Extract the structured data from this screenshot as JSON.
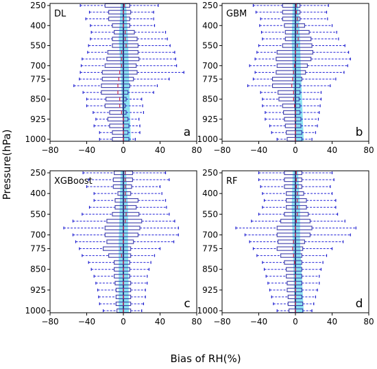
{
  "figure": {
    "ylabel": "Pressure(hPa)",
    "xlabel": "Bias of RH(%)",
    "colors": {
      "box": "#3a3aa8",
      "whisker": "#2020d8",
      "cap": "#1a1acc",
      "median": "#cc3355",
      "shade": "#63d8ee",
      "zero_line": "#1a1a55",
      "frame": "#000000"
    }
  },
  "chart_data": [
    {
      "type": "box",
      "panel_name": "DL",
      "panel_letter": "a",
      "x_ticks": [
        -80,
        -40,
        0,
        40,
        80
      ],
      "xlim": [
        -80,
        80
      ],
      "y_ticks": [
        250,
        400,
        550,
        700,
        775,
        850,
        925,
        1000
      ],
      "levels": [
        250,
        300,
        350,
        400,
        450,
        500,
        550,
        600,
        650,
        700,
        750,
        775,
        800,
        825,
        850,
        875,
        900,
        925,
        950,
        975,
        1000
      ],
      "shade": [
        {
          "level": 250,
          "x0": -3,
          "x1": 3
        },
        {
          "level": 500,
          "x0": -5,
          "x1": 5
        },
        {
          "level": 750,
          "x0": -3,
          "x1": 6
        },
        {
          "level": 1000,
          "x0": 0,
          "x1": 8
        }
      ],
      "boxes": [
        {
          "level": 250,
          "min": -47,
          "q1": -20,
          "median": 1,
          "q3": 7,
          "max": 38
        },
        {
          "level": 300,
          "min": -37,
          "q1": -16,
          "median": 0,
          "q3": 8,
          "max": 33
        },
        {
          "level": 350,
          "min": -41,
          "q1": -16,
          "median": 0,
          "q3": 7,
          "max": 33
        },
        {
          "level": 400,
          "min": -36,
          "q1": -12,
          "median": 0,
          "q3": 7,
          "max": 34
        },
        {
          "level": 450,
          "min": -35,
          "q1": -10,
          "median": 2,
          "q3": 12,
          "max": 46
        },
        {
          "level": 500,
          "min": -36,
          "q1": -12,
          "median": 2,
          "q3": 15,
          "max": 48
        },
        {
          "level": 550,
          "min": -38,
          "q1": -12,
          "median": 3,
          "q3": 16,
          "max": 51
        },
        {
          "level": 600,
          "min": -39,
          "q1": -17,
          "median": -2,
          "q3": 16,
          "max": 56
        },
        {
          "level": 650,
          "min": -45,
          "q1": -18,
          "median": -2,
          "q3": 17,
          "max": 57
        },
        {
          "level": 700,
          "min": -46,
          "q1": -20,
          "median": -2,
          "q3": 14,
          "max": 58
        },
        {
          "level": 750,
          "min": -47,
          "q1": -23,
          "median": -4,
          "q3": 15,
          "max": 66
        },
        {
          "level": 775,
          "min": -48,
          "q1": -23,
          "median": -5,
          "q3": 11,
          "max": 50
        },
        {
          "level": 800,
          "min": -54,
          "q1": -24,
          "median": -6,
          "q3": 7,
          "max": 37
        },
        {
          "level": 825,
          "min": -44,
          "q1": -24,
          "median": -6,
          "q3": 5,
          "max": 33
        },
        {
          "level": 850,
          "min": -40,
          "q1": -19,
          "median": -4,
          "q3": 3,
          "max": 20
        },
        {
          "level": 875,
          "min": -40,
          "q1": -20,
          "median": -4,
          "q3": 2,
          "max": 21
        },
        {
          "level": 900,
          "min": -33,
          "q1": -15,
          "median": -2,
          "q3": 3,
          "max": 22
        },
        {
          "level": 925,
          "min": -30,
          "q1": -17,
          "median": 0,
          "q3": 5,
          "max": 17
        },
        {
          "level": 950,
          "min": -32,
          "q1": -15,
          "median": 0,
          "q3": 6,
          "max": 18
        },
        {
          "level": 975,
          "min": -26,
          "q1": -12,
          "median": 0,
          "q3": 5,
          "max": 18
        },
        {
          "level": 1000,
          "min": -26,
          "q1": -12,
          "median": 0,
          "q3": 6,
          "max": 13
        }
      ]
    },
    {
      "type": "box",
      "panel_name": "GBM",
      "panel_letter": "b",
      "x_ticks": [
        -80,
        -40,
        0,
        40,
        80
      ],
      "xlim": [
        -80,
        80
      ],
      "y_ticks": [
        250,
        400,
        550,
        700,
        775,
        850,
        925,
        1000
      ],
      "levels": [
        250,
        300,
        350,
        400,
        450,
        500,
        550,
        600,
        650,
        700,
        750,
        775,
        800,
        825,
        850,
        875,
        900,
        925,
        950,
        975,
        1000
      ],
      "shade": [
        {
          "level": 250,
          "x0": -3,
          "x1": 3
        },
        {
          "level": 500,
          "x0": -4,
          "x1": 5
        },
        {
          "level": 750,
          "x0": -3,
          "x1": 6
        },
        {
          "level": 1000,
          "x0": 0,
          "x1": 9
        }
      ],
      "boxes": [
        {
          "level": 250,
          "min": -46,
          "q1": -14,
          "median": 1,
          "q3": 5,
          "max": 36
        },
        {
          "level": 300,
          "min": -43,
          "q1": -14,
          "median": 1,
          "q3": 5,
          "max": 34
        },
        {
          "level": 350,
          "min": -38,
          "q1": -14,
          "median": 2,
          "q3": 5,
          "max": 35
        },
        {
          "level": 400,
          "min": -39,
          "q1": -12,
          "median": 2,
          "q3": 10,
          "max": 40
        },
        {
          "level": 450,
          "min": -37,
          "q1": -11,
          "median": 2,
          "q3": 15,
          "max": 45
        },
        {
          "level": 500,
          "min": -36,
          "q1": -11,
          "median": 3,
          "q3": 17,
          "max": 47
        },
        {
          "level": 550,
          "min": -40,
          "q1": -14,
          "median": 2,
          "q3": 18,
          "max": 54
        },
        {
          "level": 600,
          "min": -42,
          "q1": -20,
          "median": 0,
          "q3": 19,
          "max": 58
        },
        {
          "level": 650,
          "min": -44,
          "q1": -21,
          "median": 0,
          "q3": 17,
          "max": 60
        },
        {
          "level": 700,
          "min": -50,
          "q1": -20,
          "median": -1,
          "q3": 13,
          "max": 57
        },
        {
          "level": 750,
          "min": -44,
          "q1": -21,
          "median": -2,
          "q3": 11,
          "max": 53
        },
        {
          "level": 775,
          "min": -46,
          "q1": -25,
          "median": -3,
          "q3": 7,
          "max": 44
        },
        {
          "level": 800,
          "min": -52,
          "q1": -25,
          "median": -4,
          "q3": 5,
          "max": 38
        },
        {
          "level": 825,
          "min": -38,
          "q1": -19,
          "median": -2,
          "q3": 5,
          "max": 28
        },
        {
          "level": 850,
          "min": -36,
          "q1": -18,
          "median": -2,
          "q3": 4,
          "max": 28
        },
        {
          "level": 875,
          "min": -36,
          "q1": -14,
          "median": -1,
          "q3": 5,
          "max": 27
        },
        {
          "level": 900,
          "min": -33,
          "q1": -13,
          "median": 0,
          "q3": 5,
          "max": 26
        },
        {
          "level": 925,
          "min": -33,
          "q1": -12,
          "median": 0,
          "q3": 6,
          "max": 25
        },
        {
          "level": 950,
          "min": -28,
          "q1": -11,
          "median": 0,
          "q3": 6,
          "max": 24
        },
        {
          "level": 975,
          "min": -26,
          "q1": -10,
          "median": 0,
          "q3": 7,
          "max": 22
        },
        {
          "level": 1000,
          "min": -20,
          "q1": -9,
          "median": 0,
          "q3": 7,
          "max": 18
        }
      ]
    },
    {
      "type": "box",
      "panel_name": "XGBoost",
      "panel_letter": "c",
      "x_ticks": [
        -80,
        -40,
        0,
        40,
        80
      ],
      "xlim": [
        -80,
        80
      ],
      "y_ticks": [
        250,
        400,
        550,
        700,
        775,
        850,
        925,
        1000
      ],
      "levels": [
        250,
        300,
        350,
        400,
        450,
        500,
        550,
        600,
        650,
        700,
        750,
        775,
        800,
        825,
        850,
        875,
        900,
        925,
        950,
        975,
        1000
      ],
      "shade": [
        {
          "level": 250,
          "x0": -3,
          "x1": 3
        },
        {
          "level": 500,
          "x0": -4,
          "x1": 5
        },
        {
          "level": 750,
          "x0": -5,
          "x1": 5
        },
        {
          "level": 1000,
          "x0": -5,
          "x1": 6
        }
      ],
      "boxes": [
        {
          "level": 250,
          "min": -44,
          "q1": -10,
          "median": 2,
          "q3": 10,
          "max": 46
        },
        {
          "level": 300,
          "min": -38,
          "q1": -11,
          "median": 2,
          "q3": 10,
          "max": 50
        },
        {
          "level": 350,
          "min": -40,
          "q1": -11,
          "median": 2,
          "q3": 9,
          "max": 40
        },
        {
          "level": 400,
          "min": -32,
          "q1": -6,
          "median": 2,
          "q3": 8,
          "max": 42
        },
        {
          "level": 450,
          "min": -32,
          "q1": -9,
          "median": 2,
          "q3": 16,
          "max": 46
        },
        {
          "level": 500,
          "min": -37,
          "q1": -9,
          "median": 2,
          "q3": 14,
          "max": 47
        },
        {
          "level": 550,
          "min": -45,
          "q1": -12,
          "median": 3,
          "q3": 17,
          "max": 50
        },
        {
          "level": 600,
          "min": -55,
          "q1": -18,
          "median": 2,
          "q3": 20,
          "max": 56
        },
        {
          "level": 650,
          "min": -65,
          "q1": -20,
          "median": 0,
          "q3": 18,
          "max": 60
        },
        {
          "level": 700,
          "min": -55,
          "q1": -20,
          "median": 0,
          "q3": 16,
          "max": 60
        },
        {
          "level": 750,
          "min": -52,
          "q1": -18,
          "median": 0,
          "q3": 11,
          "max": 55
        },
        {
          "level": 775,
          "min": -48,
          "q1": -22,
          "median": -3,
          "q3": 8,
          "max": 40
        },
        {
          "level": 800,
          "min": -45,
          "q1": -16,
          "median": -2,
          "q3": 8,
          "max": 34
        },
        {
          "level": 825,
          "min": -38,
          "q1": -10,
          "median": 0,
          "q3": 7,
          "max": 30
        },
        {
          "level": 850,
          "min": -35,
          "q1": -10,
          "median": 0,
          "q3": 7,
          "max": 28
        },
        {
          "level": 875,
          "min": -32,
          "q1": -10,
          "median": 0,
          "q3": 7,
          "max": 26
        },
        {
          "level": 900,
          "min": -30,
          "q1": -9,
          "median": 0,
          "q3": 8,
          "max": 26
        },
        {
          "level": 925,
          "min": -28,
          "q1": -8,
          "median": 0,
          "q3": 8,
          "max": 24
        },
        {
          "level": 950,
          "min": -27,
          "q1": -8,
          "median": 0,
          "q3": 8,
          "max": 24
        },
        {
          "level": 975,
          "min": -26,
          "q1": -8,
          "median": 0,
          "q3": 8,
          "max": 22
        },
        {
          "level": 1000,
          "min": -22,
          "q1": -7,
          "median": 0,
          "q3": 8,
          "max": 20
        }
      ]
    },
    {
      "type": "box",
      "panel_name": "RF",
      "panel_letter": "d",
      "x_ticks": [
        -80,
        -40,
        0,
        40,
        80
      ],
      "xlim": [
        -80,
        80
      ],
      "y_ticks": [
        250,
        400,
        550,
        700,
        775,
        850,
        925,
        1000
      ],
      "levels": [
        250,
        300,
        350,
        400,
        450,
        500,
        550,
        600,
        650,
        700,
        750,
        775,
        800,
        825,
        850,
        875,
        900,
        925,
        950,
        975,
        1000
      ],
      "shade": [
        {
          "level": 250,
          "x0": -3,
          "x1": 3
        },
        {
          "level": 500,
          "x0": -4,
          "x1": 5
        },
        {
          "level": 750,
          "x0": -3,
          "x1": 5
        },
        {
          "level": 1000,
          "x0": -1,
          "x1": 9
        }
      ],
      "boxes": [
        {
          "level": 250,
          "min": -40,
          "q1": -12,
          "median": 1,
          "q3": 7,
          "max": 40
        },
        {
          "level": 300,
          "min": -40,
          "q1": -12,
          "median": 1,
          "q3": 7,
          "max": 42
        },
        {
          "level": 350,
          "min": -38,
          "q1": -12,
          "median": 1,
          "q3": 7,
          "max": 38
        },
        {
          "level": 400,
          "min": -36,
          "q1": -10,
          "median": 2,
          "q3": 9,
          "max": 40
        },
        {
          "level": 450,
          "min": -34,
          "q1": -10,
          "median": 2,
          "q3": 12,
          "max": 44
        },
        {
          "level": 500,
          "min": -36,
          "q1": -10,
          "median": 2,
          "q3": 12,
          "max": 44
        },
        {
          "level": 550,
          "min": -40,
          "q1": -12,
          "median": 2,
          "q3": 14,
          "max": 46
        },
        {
          "level": 600,
          "min": -48,
          "q1": -16,
          "median": 1,
          "q3": 16,
          "max": 54
        },
        {
          "level": 650,
          "min": -65,
          "q1": -20,
          "median": 0,
          "q3": 18,
          "max": 66
        },
        {
          "level": 700,
          "min": -55,
          "q1": -20,
          "median": 0,
          "q3": 16,
          "max": 60
        },
        {
          "level": 750,
          "min": -50,
          "q1": -19,
          "median": -2,
          "q3": 10,
          "max": 52
        },
        {
          "level": 775,
          "min": -46,
          "q1": -20,
          "median": -3,
          "q3": 8,
          "max": 40
        },
        {
          "level": 800,
          "min": -42,
          "q1": -16,
          "median": -2,
          "q3": 7,
          "max": 34
        },
        {
          "level": 825,
          "min": -36,
          "q1": -12,
          "median": -1,
          "q3": 7,
          "max": 30
        },
        {
          "level": 850,
          "min": -34,
          "q1": -10,
          "median": 0,
          "q3": 7,
          "max": 28
        },
        {
          "level": 875,
          "min": -32,
          "q1": -10,
          "median": 0,
          "q3": 7,
          "max": 26
        },
        {
          "level": 900,
          "min": -30,
          "q1": -9,
          "median": 0,
          "q3": 7,
          "max": 26
        },
        {
          "level": 925,
          "min": -28,
          "q1": -9,
          "median": 0,
          "q3": 7,
          "max": 24
        },
        {
          "level": 950,
          "min": -26,
          "q1": -8,
          "median": 0,
          "q3": 7,
          "max": 22
        },
        {
          "level": 975,
          "min": -24,
          "q1": -8,
          "median": 0,
          "q3": 8,
          "max": 20
        },
        {
          "level": 1000,
          "min": -20,
          "q1": -7,
          "median": 0,
          "q3": 8,
          "max": 18
        }
      ]
    }
  ]
}
